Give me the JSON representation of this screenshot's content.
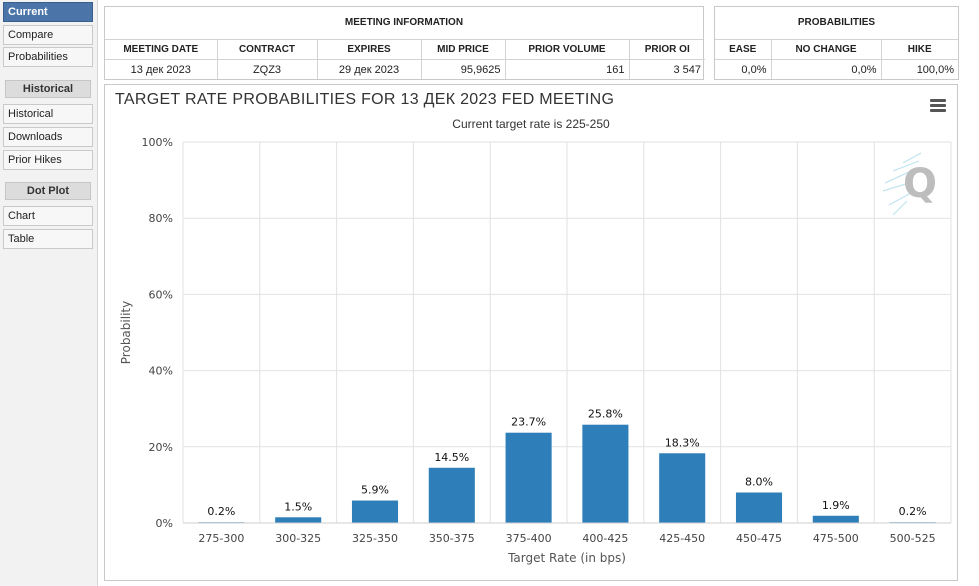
{
  "sidebar": {
    "current_group": {
      "items": [
        {
          "label": "Current",
          "active": true
        },
        {
          "label": "Compare"
        },
        {
          "label": "Probabilities"
        }
      ]
    },
    "historical_group": {
      "header": "Historical",
      "items": [
        {
          "label": "Historical"
        },
        {
          "label": "Downloads"
        },
        {
          "label": "Prior Hikes"
        }
      ]
    },
    "dotplot_group": {
      "header": "Dot Plot",
      "items": [
        {
          "label": "Chart"
        },
        {
          "label": "Table"
        }
      ]
    }
  },
  "meeting_info": {
    "title": "MEETING INFORMATION",
    "columns": [
      "MEETING DATE",
      "CONTRACT",
      "EXPIRES",
      "MID PRICE",
      "PRIOR VOLUME",
      "PRIOR OI"
    ],
    "row": [
      "13 дек 2023",
      "ZQZ3",
      "29 дек 2023",
      "95,9625",
      "161",
      "3 547"
    ]
  },
  "probabilities": {
    "title": "PROBABILITIES",
    "columns": [
      "EASE",
      "NO CHANGE",
      "HIKE"
    ],
    "row": [
      "0,0%",
      "0,0%",
      "100,0%"
    ]
  },
  "chart": {
    "menu_icon": "hamburger-menu-icon",
    "watermark_icon": "cme-q-logo",
    "bar_color": "#2e7eb9"
  },
  "chart_data": {
    "type": "bar",
    "title": "TARGET RATE PROBABILITIES FOR 13 ДЕК 2023 FED MEETING",
    "subtitle": "Current target rate is 225-250",
    "xlabel": "Target Rate (in bps)",
    "ylabel": "Probability",
    "categories": [
      "275-300",
      "300-325",
      "325-350",
      "350-375",
      "375-400",
      "400-425",
      "425-450",
      "450-475",
      "475-500",
      "500-525"
    ],
    "values": [
      0.2,
      1.5,
      5.9,
      14.5,
      23.7,
      25.8,
      18.3,
      8.0,
      1.9,
      0.2
    ],
    "data_labels": [
      "0.2%",
      "1.5%",
      "5.9%",
      "14.5%",
      "23.7%",
      "25.8%",
      "18.3%",
      "8.0%",
      "1.9%",
      "0.2%"
    ],
    "ylim": [
      0,
      100
    ],
    "yticks": [
      "0%",
      "20%",
      "40%",
      "60%",
      "80%",
      "100%"
    ],
    "grid": true,
    "legend": "none"
  }
}
